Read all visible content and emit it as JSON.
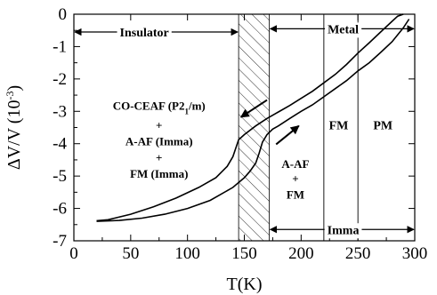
{
  "chart_data": {
    "type": "line",
    "xlabel": "T(K)",
    "ylabel": "ΔV/V (10",
    "ylabel_exponent": "-3",
    "ylabel_close": ")",
    "xlim": [
      0,
      300
    ],
    "ylim": [
      -7,
      0
    ],
    "xticks": [
      0,
      50,
      100,
      150,
      200,
      250,
      300
    ],
    "yticks": [
      0,
      -1,
      -2,
      -3,
      -4,
      -5,
      -6,
      -7
    ],
    "grid": false,
    "series": [
      {
        "id": "upper",
        "x": [
          20,
          30,
          50,
          70,
          90,
          110,
          125,
          135,
          140,
          145,
          150,
          160,
          170,
          180,
          190,
          200,
          210,
          220,
          230,
          240,
          250,
          260,
          270,
          280,
          285,
          290
        ],
        "y": [
          -6.38,
          -6.35,
          -6.18,
          -5.95,
          -5.68,
          -5.35,
          -5.05,
          -4.7,
          -4.4,
          -3.88,
          -3.72,
          -3.45,
          -3.22,
          -3.02,
          -2.82,
          -2.6,
          -2.38,
          -2.12,
          -1.86,
          -1.55,
          -1.2,
          -0.88,
          -0.55,
          -0.22,
          -0.06,
          0.0
        ]
      },
      {
        "id": "lower",
        "x": [
          20,
          40,
          60,
          80,
          100,
          120,
          140,
          150,
          155,
          160,
          163,
          166,
          170,
          175,
          180,
          190,
          200,
          210,
          220,
          230,
          240,
          250,
          260,
          270,
          280,
          290,
          295
        ],
        "y": [
          -6.4,
          -6.37,
          -6.3,
          -6.18,
          -6.0,
          -5.75,
          -5.35,
          -5.05,
          -4.85,
          -4.6,
          -4.3,
          -3.95,
          -3.72,
          -3.55,
          -3.45,
          -3.22,
          -3.0,
          -2.8,
          -2.55,
          -2.3,
          -2.05,
          -1.75,
          -1.5,
          -1.18,
          -0.85,
          -0.42,
          -0.15
        ]
      }
    ],
    "hatched_region": {
      "x": [
        145,
        172
      ]
    },
    "vertical_lines": [
      220,
      250
    ],
    "regions": {
      "insulator": "Insulator",
      "metal": "Metal",
      "imma": "Imma",
      "fm": "FM",
      "pm": "PM"
    },
    "phase_text": {
      "line1": "CO-CEAF (P2",
      "line1_sub": "1",
      "line1_end": "/m)",
      "plus1": "+",
      "line2": "A-AF (Imma)",
      "plus2": "+",
      "line3": "FM (Imma)"
    },
    "mixed_text": {
      "line1": "A-AF",
      "plus": "+",
      "line2": "FM"
    },
    "arrows": [
      {
        "name": "cooling",
        "from": [
          170,
          -2.65
        ],
        "to": [
          147,
          -3.18
        ]
      },
      {
        "name": "warming",
        "from": [
          178,
          -4.02
        ],
        "to": [
          198,
          -3.45
        ]
      }
    ],
    "region_arrows": {
      "insulator": {
        "y": -0.55,
        "x": [
          0,
          145
        ]
      },
      "metal": {
        "y": -0.45,
        "x": [
          172,
          300
        ]
      },
      "imma": {
        "y": -6.65,
        "x": [
          172,
          300
        ]
      }
    }
  }
}
